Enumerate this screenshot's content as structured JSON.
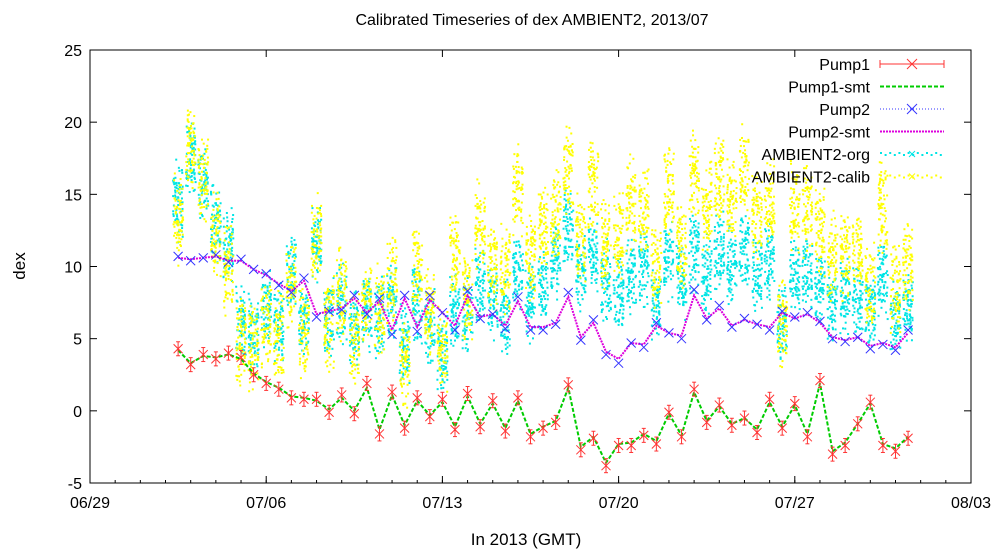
{
  "chart_data": {
    "type": "line",
    "title": "Calibrated Timeseries of dex AMBIENT2, 2013/07",
    "xlabel": "In 2013 (GMT)",
    "ylabel": "dex",
    "x_ticks": [
      "06/29",
      "07/06",
      "07/13",
      "07/20",
      "07/27",
      "08/03"
    ],
    "ylim": [
      -5,
      25
    ],
    "y_ticks": [
      -5,
      0,
      5,
      10,
      15,
      20,
      25
    ],
    "grid": false,
    "legend_position": "top-right",
    "colors": {
      "pump1": "#ff3333",
      "pump1_smt": "#00cc00",
      "pump2": "#3333ff",
      "pump2_smt": "#dd00dd",
      "ambient2_org": "#00e5e5",
      "ambient2_calib": "#ffff00"
    },
    "series": [
      {
        "name": "Pump1",
        "marker": "x",
        "x": [
          "07/02 12:00",
          "07/03 00:00",
          "07/03 12:00",
          "07/04 00:00",
          "07/04 12:00",
          "07/05 00:00",
          "07/05 12:00",
          "07/06 00:00",
          "07/06 12:00",
          "07/07 00:00",
          "07/07 12:00",
          "07/08 00:00",
          "07/08 12:00",
          "07/09 00:00",
          "07/09 12:00",
          "07/10 00:00",
          "07/10 12:00",
          "07/11 00:00",
          "07/11 12:00",
          "07/12 00:00",
          "07/12 12:00",
          "07/13 00:00",
          "07/13 12:00",
          "07/14 00:00",
          "07/14 12:00",
          "07/15 00:00",
          "07/15 12:00",
          "07/16 00:00",
          "07/16 12:00",
          "07/17 00:00",
          "07/17 12:00",
          "07/18 00:00",
          "07/18 12:00",
          "07/19 00:00",
          "07/19 12:00",
          "07/20 00:00",
          "07/20 12:00",
          "07/21 00:00",
          "07/21 12:00",
          "07/22 00:00",
          "07/22 12:00",
          "07/23 00:00",
          "07/23 12:00",
          "07/24 00:00",
          "07/24 12:00",
          "07/25 00:00",
          "07/25 12:00",
          "07/26 00:00",
          "07/26 12:00",
          "07/27 00:00",
          "07/27 12:00",
          "07/28 00:00",
          "07/28 12:00",
          "07/29 00:00",
          "07/29 12:00",
          "07/30 00:00",
          "07/30 12:00",
          "07/31 00:00",
          "07/31 12:00"
        ],
        "y": [
          4.3,
          3.2,
          3.9,
          3.6,
          4.0,
          3.7,
          2.5,
          1.9,
          1.5,
          0.9,
          0.8,
          0.8,
          -0.1,
          1.1,
          -0.2,
          1.9,
          -1.6,
          1.3,
          -1.2,
          0.9,
          -0.4,
          0.8,
          -1.3,
          1.2,
          -1.1,
          0.7,
          -1.4,
          0.9,
          -1.8,
          -1.2,
          -0.8,
          1.8,
          -2.7,
          -1.9,
          -3.8,
          -2.4,
          -2.4,
          -1.7,
          -2.3,
          -0.1,
          -1.8,
          1.5,
          -0.8,
          0.4,
          -1.0,
          -0.5,
          -1.5,
          0.8,
          -1.2,
          0.5,
          -1.8,
          2.1,
          -3.0,
          -2.4,
          -0.9,
          0.6,
          -2.4,
          -2.8,
          -1.9
        ]
      },
      {
        "name": "Pump1-smt",
        "x": [
          "07/02 12:00",
          "07/03 00:00",
          "07/03 12:00",
          "07/04 00:00",
          "07/04 12:00",
          "07/05 00:00",
          "07/05 12:00",
          "07/06 00:00",
          "07/06 12:00",
          "07/07 00:00",
          "07/07 12:00",
          "07/08 00:00",
          "07/08 12:00",
          "07/09 00:00",
          "07/09 12:00",
          "07/10 00:00",
          "07/10 12:00",
          "07/11 00:00",
          "07/11 12:00",
          "07/12 00:00",
          "07/12 12:00",
          "07/13 00:00",
          "07/13 12:00",
          "07/14 00:00",
          "07/14 12:00",
          "07/15 00:00",
          "07/15 12:00",
          "07/16 00:00",
          "07/16 12:00",
          "07/17 00:00",
          "07/17 12:00",
          "07/18 00:00",
          "07/18 12:00",
          "07/19 00:00",
          "07/19 12:00",
          "07/20 00:00",
          "07/20 12:00",
          "07/21 00:00",
          "07/21 12:00",
          "07/22 00:00",
          "07/22 12:00",
          "07/23 00:00",
          "07/23 12:00",
          "07/24 00:00",
          "07/24 12:00",
          "07/25 00:00",
          "07/25 12:00",
          "07/26 00:00",
          "07/26 12:00",
          "07/27 00:00",
          "07/27 12:00",
          "07/28 00:00",
          "07/28 12:00",
          "07/29 00:00",
          "07/29 12:00",
          "07/30 00:00",
          "07/30 12:00",
          "07/31 00:00",
          "07/31 12:00"
        ],
        "y": [
          4.2,
          3.3,
          3.8,
          3.7,
          3.9,
          3.6,
          2.6,
          2.0,
          1.6,
          1.0,
          0.9,
          0.7,
          0.1,
          0.9,
          0.0,
          1.6,
          -1.3,
          1.1,
          -1.0,
          0.7,
          -0.3,
          0.6,
          -1.1,
          1.0,
          -0.9,
          0.5,
          -1.2,
          0.7,
          -1.6,
          -1.1,
          -0.7,
          1.6,
          -2.5,
          -1.8,
          -3.6,
          -2.3,
          -2.2,
          -1.6,
          -2.1,
          -0.2,
          -1.7,
          1.3,
          -0.7,
          0.3,
          -0.9,
          -0.5,
          -1.3,
          0.6,
          -1.1,
          0.4,
          -1.6,
          1.9,
          -2.8,
          -2.2,
          -0.9,
          0.5,
          -2.3,
          -2.6,
          -1.8
        ]
      },
      {
        "name": "Pump2",
        "marker": "x",
        "x": [
          "07/02 12:00",
          "07/03 00:00",
          "07/03 12:00",
          "07/04 00:00",
          "07/04 12:00",
          "07/05 00:00",
          "07/05 12:00",
          "07/06 00:00",
          "07/06 12:00",
          "07/07 00:00",
          "07/07 12:00",
          "07/08 00:00",
          "07/08 12:00",
          "07/09 00:00",
          "07/09 12:00",
          "07/10 00:00",
          "07/10 12:00",
          "07/11 00:00",
          "07/11 12:00",
          "07/12 00:00",
          "07/12 12:00",
          "07/13 00:00",
          "07/13 12:00",
          "07/14 00:00",
          "07/14 12:00",
          "07/15 00:00",
          "07/15 12:00",
          "07/16 00:00",
          "07/16 12:00",
          "07/17 00:00",
          "07/17 12:00",
          "07/18 00:00",
          "07/18 12:00",
          "07/19 00:00",
          "07/19 12:00",
          "07/20 00:00",
          "07/20 12:00",
          "07/21 00:00",
          "07/21 12:00",
          "07/22 00:00",
          "07/22 12:00",
          "07/23 00:00",
          "07/23 12:00",
          "07/24 00:00",
          "07/24 12:00",
          "07/25 00:00",
          "07/25 12:00",
          "07/26 00:00",
          "07/26 12:00",
          "07/27 00:00",
          "07/27 12:00",
          "07/28 00:00",
          "07/28 12:00",
          "07/29 00:00",
          "07/29 12:00",
          "07/30 00:00",
          "07/30 12:00",
          "07/31 00:00",
          "07/31 12:00"
        ],
        "y": [
          10.7,
          10.4,
          10.6,
          10.8,
          10.3,
          10.5,
          9.8,
          9.5,
          8.7,
          8.2,
          9.2,
          6.5,
          6.9,
          7.0,
          8.0,
          6.7,
          7.8,
          5.3,
          8.0,
          5.5,
          8.0,
          6.8,
          5.6,
          8.3,
          6.4,
          6.7,
          5.7,
          7.9,
          5.6,
          5.6,
          6.0,
          8.2,
          4.9,
          6.3,
          3.9,
          3.3,
          4.7,
          4.4,
          6.1,
          5.4,
          5.0,
          8.4,
          6.3,
          7.3,
          5.8,
          6.4,
          6.0,
          5.6,
          6.9,
          6.5,
          6.8,
          6.2,
          5.0,
          4.8,
          5.1,
          4.3,
          4.6,
          4.2,
          5.6
        ]
      },
      {
        "name": "Pump2-smt",
        "x": [
          "07/02 12:00",
          "07/03 00:00",
          "07/03 12:00",
          "07/04 00:00",
          "07/04 12:00",
          "07/05 00:00",
          "07/05 12:00",
          "07/06 00:00",
          "07/06 12:00",
          "07/07 00:00",
          "07/07 12:00",
          "07/08 00:00",
          "07/08 12:00",
          "07/09 00:00",
          "07/09 12:00",
          "07/10 00:00",
          "07/10 12:00",
          "07/11 00:00",
          "07/11 12:00",
          "07/12 00:00",
          "07/12 12:00",
          "07/13 00:00",
          "07/13 12:00",
          "07/14 00:00",
          "07/14 12:00",
          "07/15 00:00",
          "07/15 12:00",
          "07/16 00:00",
          "07/16 12:00",
          "07/17 00:00",
          "07/17 12:00",
          "07/18 00:00",
          "07/18 12:00",
          "07/19 00:00",
          "07/19 12:00",
          "07/20 00:00",
          "07/20 12:00",
          "07/21 00:00",
          "07/21 12:00",
          "07/22 00:00",
          "07/22 12:00",
          "07/23 00:00",
          "07/23 12:00",
          "07/24 00:00",
          "07/24 12:00",
          "07/25 00:00",
          "07/25 12:00",
          "07/26 00:00",
          "07/26 12:00",
          "07/27 00:00",
          "07/27 12:00",
          "07/28 00:00",
          "07/28 12:00",
          "07/29 00:00",
          "07/29 12:00",
          "07/30 00:00",
          "07/30 12:00",
          "07/31 00:00",
          "07/31 12:00"
        ],
        "y": [
          10.6,
          10.5,
          10.6,
          10.7,
          10.4,
          10.4,
          9.8,
          9.4,
          8.8,
          8.3,
          9.0,
          6.7,
          6.9,
          7.1,
          7.8,
          6.8,
          7.6,
          5.6,
          7.8,
          5.8,
          7.7,
          6.8,
          5.9,
          8.0,
          6.5,
          6.7,
          5.9,
          7.6,
          5.8,
          5.8,
          6.1,
          7.9,
          5.1,
          6.1,
          4.1,
          3.6,
          4.7,
          4.6,
          5.9,
          5.4,
          5.2,
          8.0,
          6.4,
          7.1,
          5.9,
          6.3,
          6.0,
          5.8,
          6.8,
          6.4,
          6.7,
          6.1,
          5.1,
          4.9,
          5.1,
          4.5,
          4.7,
          4.4,
          5.4
        ]
      },
      {
        "name": "AMBIENT2-org",
        "x": [
          "07/02 12:00",
          "07/03 00:00",
          "07/03 12:00",
          "07/04 00:00",
          "07/04 12:00",
          "07/05 00:00",
          "07/05 12:00",
          "07/06 00:00",
          "07/06 12:00",
          "07/07 00:00",
          "07/07 12:00",
          "07/08 00:00",
          "07/08 12:00",
          "07/09 00:00",
          "07/09 12:00",
          "07/10 00:00",
          "07/10 12:00",
          "07/11 00:00",
          "07/11 12:00",
          "07/12 00:00",
          "07/12 12:00",
          "07/13 00:00",
          "07/13 12:00",
          "07/14 00:00",
          "07/14 12:00",
          "07/15 00:00",
          "07/15 12:00",
          "07/16 00:00",
          "07/16 12:00",
          "07/17 00:00",
          "07/17 12:00",
          "07/18 00:00",
          "07/18 12:00",
          "07/19 00:00",
          "07/19 12:00",
          "07/20 00:00",
          "07/20 12:00",
          "07/21 00:00",
          "07/21 12:00",
          "07/22 00:00",
          "07/22 12:00",
          "07/23 00:00",
          "07/23 12:00",
          "07/24 00:00",
          "07/24 12:00",
          "07/25 00:00",
          "07/25 12:00",
          "07/26 00:00",
          "07/26 12:00",
          "07/27 00:00",
          "07/27 12:00",
          "07/28 00:00",
          "07/28 12:00",
          "07/29 00:00",
          "07/29 12:00",
          "07/30 00:00",
          "07/30 12:00",
          "07/31 00:00",
          "07/31 12:00"
        ],
        "y": [
          14.5,
          17.5,
          15.5,
          13.0,
          11.5,
          6.0,
          5.5,
          7.0,
          6.0,
          9.5,
          6.5,
          11.5,
          6.5,
          7.5,
          6.0,
          7.0,
          6.5,
          7.5,
          4.5,
          7.5,
          6.0,
          4.0,
          7.0,
          6.5,
          8.5,
          7.5,
          6.5,
          9.5,
          7.5,
          8.5,
          10.5,
          12.5,
          9.5,
          11.0,
          9.0,
          8.0,
          9.5,
          10.0,
          7.5,
          10.5,
          9.0,
          11.0,
          9.5,
          11.0,
          10.0,
          11.0,
          9.5,
          10.5,
          6.0,
          9.5,
          9.5,
          8.5,
          7.5,
          8.0,
          8.0,
          7.0,
          9.0,
          6.5,
          7.5
        ],
        "y_spread": 3.0
      },
      {
        "name": "AMBIENT2-calib",
        "x": [
          "07/02 12:00",
          "07/03 00:00",
          "07/03 12:00",
          "07/04 00:00",
          "07/04 12:00",
          "07/05 00:00",
          "07/05 12:00",
          "07/06 00:00",
          "07/06 12:00",
          "07/07 00:00",
          "07/07 12:00",
          "07/08 00:00",
          "07/08 12:00",
          "07/09 00:00",
          "07/09 12:00",
          "07/10 00:00",
          "07/10 12:00",
          "07/11 00:00",
          "07/11 12:00",
          "07/12 00:00",
          "07/12 12:00",
          "07/13 00:00",
          "07/13 12:00",
          "07/14 00:00",
          "07/14 12:00",
          "07/15 00:00",
          "07/15 12:00",
          "07/16 00:00",
          "07/16 12:00",
          "07/17 00:00",
          "07/17 12:00",
          "07/18 00:00",
          "07/18 12:00",
          "07/19 00:00",
          "07/19 12:00",
          "07/20 00:00",
          "07/20 12:00",
          "07/21 00:00",
          "07/21 12:00",
          "07/22 00:00",
          "07/22 12:00",
          "07/23 00:00",
          "07/23 12:00",
          "07/24 00:00",
          "07/24 12:00",
          "07/25 00:00",
          "07/25 12:00",
          "07/26 00:00",
          "07/26 12:00",
          "07/27 00:00",
          "07/27 12:00",
          "07/28 00:00",
          "07/28 12:00",
          "07/29 00:00",
          "07/29 12:00",
          "07/30 00:00",
          "07/30 12:00",
          "07/31 00:00",
          "07/31 12:00"
        ],
        "y": [
          13.5,
          18.0,
          16.0,
          12.0,
          9.5,
          5.0,
          4.5,
          6.0,
          5.0,
          8.5,
          5.5,
          12.0,
          6.0,
          8.0,
          5.0,
          7.5,
          7.0,
          9.0,
          3.5,
          10.0,
          7.0,
          4.0,
          10.5,
          8.0,
          13.0,
          10.0,
          10.0,
          15.5,
          10.5,
          12.5,
          13.5,
          16.5,
          12.0,
          15.5,
          11.5,
          12.0,
          14.5,
          14.0,
          10.0,
          15.0,
          11.5,
          16.5,
          14.0,
          16.0,
          14.5,
          16.5,
          13.5,
          14.5,
          6.0,
          14.0,
          14.0,
          12.5,
          10.5,
          11.0,
          11.0,
          8.5,
          14.0,
          8.5,
          10.0
        ],
        "y_spread": 3.5
      }
    ]
  }
}
